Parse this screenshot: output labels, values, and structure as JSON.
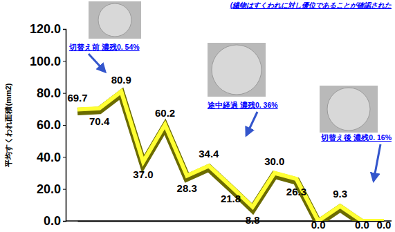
{
  "chart_data": {
    "type": "line",
    "title": "(繊物はすくわれに対し優位であることが確認された",
    "y_label": "平均すくわれ面積(mm2)",
    "categories": [
      null,
      null,
      null,
      null,
      null,
      null,
      null,
      null,
      null,
      null,
      null,
      null,
      null,
      null,
      null
    ],
    "values": [
      69.7,
      70.4,
      80.9,
      37.0,
      60.2,
      28.3,
      34.4,
      21.8,
      8.8,
      30.0,
      26.3,
      0.0,
      9.3,
      0.0,
      0.0
    ],
    "value_labels": [
      "69.7",
      "70.4",
      "80.9",
      "37.0",
      "60.2",
      "28.3",
      "34.4",
      "21.8",
      "8.8",
      "30.0",
      "26.3",
      "0.0",
      "9.3",
      "0.0",
      "0.0"
    ],
    "color": "#ffff33",
    "ylim": [
      0,
      120
    ],
    "yticks": [
      {
        "value": 0,
        "label": "0.0"
      },
      {
        "value": 20,
        "label": "20.0"
      },
      {
        "value": 40,
        "label": "40.0"
      },
      {
        "value": 60,
        "label": "60.0"
      },
      {
        "value": 80,
        "label": "80.0"
      },
      {
        "value": 100,
        "label": "100.0"
      },
      {
        "value": 120,
        "label": "120.0"
      }
    ],
    "data_labels": true,
    "tick_labels": "y",
    "annotations": [
      "切替え前 濃残0. 54%",
      "途中経過 濃残0. 36%",
      "切替え後 濃残0. 16%"
    ]
  }
}
